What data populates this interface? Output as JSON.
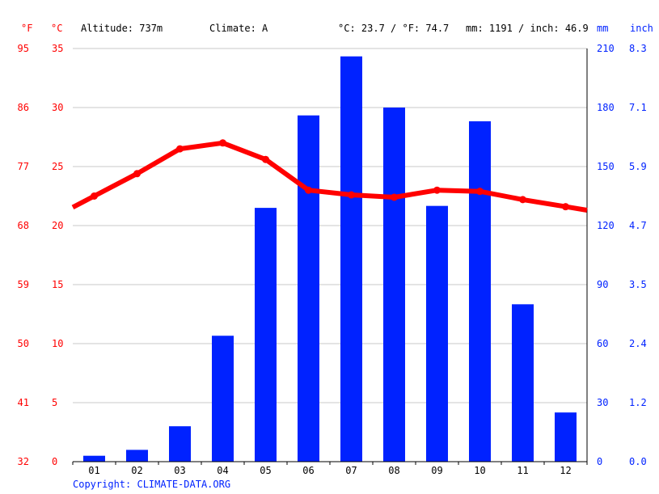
{
  "header": {
    "unit_f": "°F",
    "unit_c": "°C",
    "altitude": "Altitude: 737m",
    "climate": "Climate: A",
    "avg_temp": "°C: 23.7 / °F: 74.7",
    "precip_total": "mm: 1191 / inch: 46.9",
    "unit_mm": "mm",
    "unit_inch": "inch"
  },
  "copyright": "Copyright: CLIMATE-DATA.ORG",
  "colors": {
    "temperature": "#ff0000",
    "precipitation": "#0022ff",
    "grid": "#c8c8c8",
    "axis": "#000000"
  },
  "chart_data": {
    "type": "bar",
    "categories": [
      "01",
      "02",
      "03",
      "04",
      "05",
      "06",
      "07",
      "08",
      "09",
      "10",
      "11",
      "12"
    ],
    "grid": true,
    "series": [
      {
        "type": "bar",
        "axis": "right",
        "values": [
          3,
          6,
          18,
          64,
          129,
          176,
          206,
          180,
          130,
          173,
          80,
          25
        ]
      },
      {
        "type": "line",
        "axis": "left",
        "values": [
          22.5,
          24.4,
          26.5,
          27.0,
          25.6,
          23.0,
          22.6,
          22.4,
          23.0,
          22.9,
          22.2,
          21.6
        ]
      }
    ],
    "left_axis_c": {
      "ticks": [
        0,
        5,
        10,
        15,
        20,
        25,
        30,
        35
      ],
      "range": [
        0,
        35
      ]
    },
    "left_axis_f": {
      "ticks": [
        32,
        41,
        50,
        59,
        68,
        77,
        86,
        95
      ]
    },
    "right_axis_mm": {
      "ticks": [
        0,
        30,
        60,
        90,
        120,
        150,
        180,
        210
      ],
      "range": [
        0,
        210
      ]
    },
    "right_axis_inch": {
      "ticks": [
        "0.0",
        "1.2",
        "2.4",
        "3.5",
        "4.7",
        "5.9",
        "7.1",
        "8.3"
      ]
    }
  }
}
